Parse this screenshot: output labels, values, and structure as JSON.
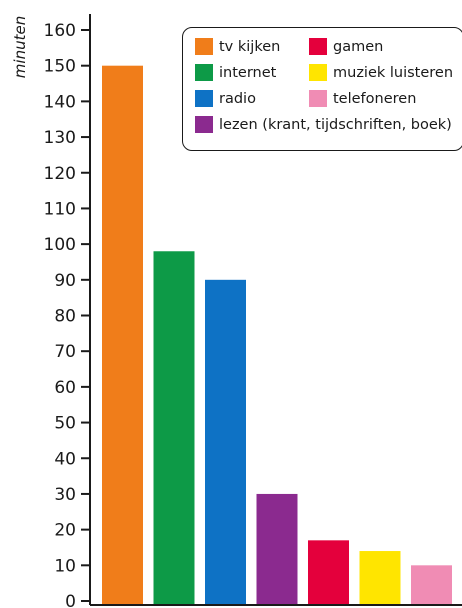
{
  "chart_data": {
    "type": "bar",
    "categories": [
      "tv kijken",
      "internet",
      "radio",
      "lezen (krant, tijdschriften, boek)",
      "gamen",
      "muziek luisteren",
      "telefoneren"
    ],
    "values": [
      150,
      98,
      90,
      30,
      17,
      14,
      10
    ],
    "colors": [
      "#f07d1a",
      "#0d9a47",
      "#0e72c5",
      "#8b2a8f",
      "#e4003c",
      "#ffe500",
      "#f08cb4"
    ],
    "ylabel": "minuten",
    "ylim": [
      0,
      160
    ],
    "yticks": [
      0,
      10,
      20,
      30,
      40,
      50,
      60,
      70,
      80,
      90,
      100,
      110,
      120,
      130,
      140,
      150,
      160
    ],
    "grid": false,
    "legend_position": "top-right",
    "legend": {
      "entries": [
        {
          "label": "tv kijken",
          "color": "#f07d1a"
        },
        {
          "label": "gamen",
          "color": "#e4003c"
        },
        {
          "label": "internet",
          "color": "#0d9a47"
        },
        {
          "label": "muziek luisteren",
          "color": "#ffe500"
        },
        {
          "label": "radio",
          "color": "#0e72c5"
        },
        {
          "label": "telefoneren",
          "color": "#f08cb4"
        },
        {
          "label": "lezen (krant, tijdschriften, boek)",
          "color": "#8b2a8f"
        }
      ]
    }
  }
}
